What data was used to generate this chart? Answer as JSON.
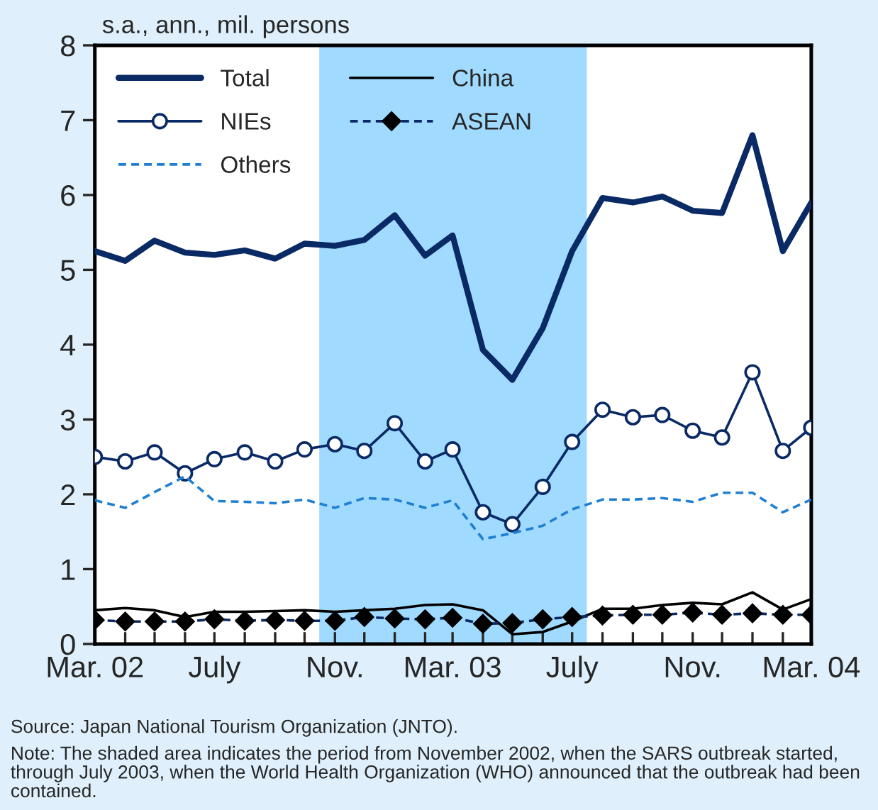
{
  "chart_data": {
    "type": "line",
    "ylabel": "s.a., ann., mil. persons",
    "x": [
      "2002-03",
      "2002-04",
      "2002-05",
      "2002-06",
      "2002-07",
      "2002-08",
      "2002-09",
      "2002-10",
      "2002-11",
      "2002-12",
      "2003-01",
      "2003-02",
      "2003-03",
      "2003-04",
      "2003-05",
      "2003-06",
      "2003-07",
      "2003-08",
      "2003-09",
      "2003-10",
      "2003-11",
      "2003-12",
      "2004-01",
      "2004-02",
      "2004-03"
    ],
    "series": [
      {
        "name": "Total",
        "color": "#0a2a66",
        "marker": "none",
        "line_style": "solid",
        "values": [
          5.25,
          5.12,
          5.39,
          5.23,
          5.2,
          5.26,
          5.15,
          5.35,
          5.32,
          5.4,
          5.73,
          5.19,
          5.46,
          3.93,
          3.53,
          4.22,
          5.25,
          5.96,
          5.9,
          5.98,
          5.79,
          5.76,
          6.8,
          5.25,
          5.9
        ]
      },
      {
        "name": "China",
        "color": "#000000",
        "marker": "none",
        "line_style": "solid",
        "values": [
          0.45,
          0.48,
          0.45,
          0.36,
          0.43,
          0.43,
          0.44,
          0.45,
          0.43,
          0.45,
          0.47,
          0.52,
          0.53,
          0.45,
          0.13,
          0.16,
          0.3,
          0.47,
          0.47,
          0.52,
          0.55,
          0.53,
          0.69,
          0.46,
          0.6
        ]
      },
      {
        "name": "NIEs",
        "color": "#0a2a66",
        "marker": "circle",
        "line_style": "solid",
        "values": [
          2.5,
          2.44,
          2.56,
          2.28,
          2.47,
          2.56,
          2.44,
          2.6,
          2.67,
          2.58,
          2.95,
          2.44,
          2.6,
          1.76,
          1.6,
          2.1,
          2.7,
          3.13,
          3.03,
          3.06,
          2.85,
          2.76,
          3.63,
          2.58,
          2.89
        ]
      },
      {
        "name": "ASEAN",
        "color": "#0a2a66",
        "marker": "diamond",
        "line_style": "dashed",
        "values": [
          0.32,
          0.3,
          0.3,
          0.3,
          0.33,
          0.31,
          0.32,
          0.31,
          0.31,
          0.36,
          0.34,
          0.33,
          0.35,
          0.27,
          0.28,
          0.33,
          0.36,
          0.38,
          0.39,
          0.39,
          0.42,
          0.39,
          0.41,
          0.39,
          0.39
        ]
      },
      {
        "name": "Others",
        "color": "#1f7fd0",
        "marker": "none",
        "line_style": "dashed",
        "values": [
          1.92,
          1.82,
          2.03,
          2.24,
          1.91,
          1.9,
          1.88,
          1.93,
          1.82,
          1.95,
          1.93,
          1.82,
          1.92,
          1.4,
          1.48,
          1.58,
          1.8,
          1.93,
          1.93,
          1.95,
          1.9,
          2.02,
          2.02,
          1.76,
          1.93
        ]
      }
    ],
    "xlim": [
      "2002-03",
      "2004-03"
    ],
    "xticks": [
      {
        "value": "2002-03",
        "label": "Mar. 02"
      },
      {
        "value": "2002-04",
        "label": null
      },
      {
        "value": "2002-05",
        "label": null
      },
      {
        "value": "2002-06",
        "label": null
      },
      {
        "value": "2002-07",
        "label": "July"
      },
      {
        "value": "2002-08",
        "label": null
      },
      {
        "value": "2002-09",
        "label": null
      },
      {
        "value": "2002-10",
        "label": null
      },
      {
        "value": "2002-11",
        "label": "Nov."
      },
      {
        "value": "2002-12",
        "label": null
      },
      {
        "value": "2003-01",
        "label": null
      },
      {
        "value": "2003-02",
        "label": null
      },
      {
        "value": "2003-03",
        "label": "Mar. 03"
      },
      {
        "value": "2003-04",
        "label": null
      },
      {
        "value": "2003-05",
        "label": null
      },
      {
        "value": "2003-06",
        "label": null
      },
      {
        "value": "2003-07",
        "label": "July"
      },
      {
        "value": "2003-08",
        "label": null
      },
      {
        "value": "2003-09",
        "label": null
      },
      {
        "value": "2003-10",
        "label": null
      },
      {
        "value": "2003-11",
        "label": "Nov."
      },
      {
        "value": "2003-12",
        "label": null
      },
      {
        "value": "2004-01",
        "label": null
      },
      {
        "value": "2004-02",
        "label": null
      },
      {
        "value": "2004-03",
        "label": "Mar. 04"
      }
    ],
    "ylim": [
      0,
      8
    ],
    "yticks": [
      0,
      1,
      2,
      3,
      4,
      5,
      6,
      7,
      8
    ],
    "bands": [
      {
        "axis": "x",
        "from": "2002-10-16",
        "to": "2003-07-16",
        "color": "#a0daff"
      }
    ],
    "grid": false,
    "legend": "top left",
    "annotations": [
      "Source: Japan National Tourism Organization (JNTO).",
      "Note: The shaded area indicates the period from November 2002, when the SARS outbreak started, through July 2003, when the World Health Organization (WHO) announced that the outbreak had been contained."
    ]
  }
}
